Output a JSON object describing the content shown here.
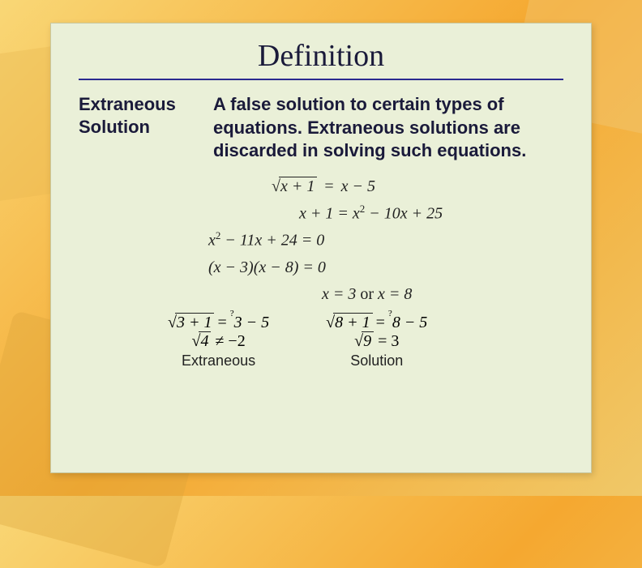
{
  "card": {
    "title": "Definition",
    "term_line1": "Extraneous",
    "term_line2": "Solution",
    "definition": "A  false solution to certain types of equations. Extraneous solutions are discarded in solving such equations."
  },
  "equations": {
    "line1_radicand": "x + 1",
    "line1_rhs": "x − 5",
    "line2": "x + 1 = x",
    "line2_exp": "2",
    "line2_rest": " − 10x + 25",
    "line3_a": "x",
    "line3_exp": "2",
    "line3_rest": " − 11x + 24 = 0",
    "line4": "(x − 3)(x − 8) = 0",
    "line5_a": "x = 3",
    "line5_or": " or ",
    "line5_b": "x = 8"
  },
  "checks": {
    "left": {
      "rad1": "3 + 1",
      "rhs1": "3 − 5",
      "rad2": "4",
      "neq": " ≠ −2",
      "label": "Extraneous"
    },
    "right": {
      "rad1": "8 + 1",
      "rhs1": "8 − 5",
      "rad2": "9",
      "eq": " = 3",
      "label": "Solution"
    }
  },
  "style": {
    "card_bg": "#eaf0d8",
    "rule_color": "#2a2a8f",
    "title_fontsize": 38,
    "body_fontsize": 22,
    "math_fontsize": 20
  }
}
